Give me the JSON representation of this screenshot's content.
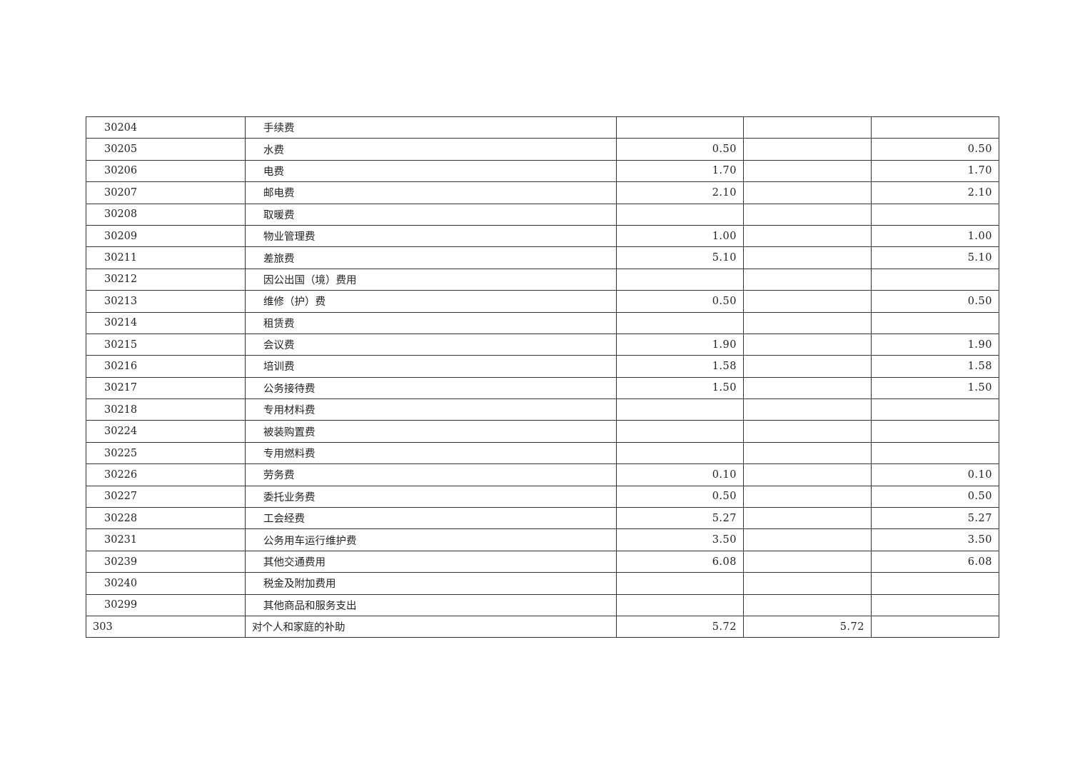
{
  "rows": [
    {
      "code": "30204",
      "name": "手续费",
      "c1": "",
      "c2": "",
      "c3": ""
    },
    {
      "code": "30205",
      "name": "水费",
      "c1": "0.50",
      "c2": "",
      "c3": "0.50"
    },
    {
      "code": "30206",
      "name": "电费",
      "c1": "1.70",
      "c2": "",
      "c3": "1.70"
    },
    {
      "code": "30207",
      "name": "邮电费",
      "c1": "2.10",
      "c2": "",
      "c3": "2.10"
    },
    {
      "code": "30208",
      "name": "取暖费",
      "c1": "",
      "c2": "",
      "c3": ""
    },
    {
      "code": "30209",
      "name": "物业管理费",
      "c1": "1.00",
      "c2": "",
      "c3": "1.00"
    },
    {
      "code": "30211",
      "name": "差旅费",
      "c1": "5.10",
      "c2": "",
      "c3": "5.10"
    },
    {
      "code": "30212",
      "name": "因公出国（境）费用",
      "c1": "",
      "c2": "",
      "c3": ""
    },
    {
      "code": "30213",
      "name": "维修（护）费",
      "c1": "0.50",
      "c2": "",
      "c3": "0.50"
    },
    {
      "code": "30214",
      "name": "租赁费",
      "c1": "",
      "c2": "",
      "c3": ""
    },
    {
      "code": "30215",
      "name": "会议费",
      "c1": "1.90",
      "c2": "",
      "c3": "1.90"
    },
    {
      "code": "30216",
      "name": "培训费",
      "c1": "1.58",
      "c2": "",
      "c3": "1.58"
    },
    {
      "code": "30217",
      "name": "公务接待费",
      "c1": "1.50",
      "c2": "",
      "c3": "1.50"
    },
    {
      "code": "30218",
      "name": "专用材料费",
      "c1": "",
      "c2": "",
      "c3": ""
    },
    {
      "code": "30224",
      "name": "被装购置费",
      "c1": "",
      "c2": "",
      "c3": ""
    },
    {
      "code": "30225",
      "name": "专用燃料费",
      "c1": "",
      "c2": "",
      "c3": ""
    },
    {
      "code": "30226",
      "name": "劳务费",
      "c1": "0.10",
      "c2": "",
      "c3": "0.10"
    },
    {
      "code": "30227",
      "name": "委托业务费",
      "c1": "0.50",
      "c2": "",
      "c3": "0.50"
    },
    {
      "code": "30228",
      "name": "工会经费",
      "c1": "5.27",
      "c2": "",
      "c3": "5.27"
    },
    {
      "code": "30231",
      "name": "公务用车运行维护费",
      "c1": "3.50",
      "c2": "",
      "c3": "3.50"
    },
    {
      "code": "30239",
      "name": "其他交通费用",
      "c1": "6.08",
      "c2": "",
      "c3": "6.08"
    },
    {
      "code": "30240",
      "name": "税金及附加费用",
      "c1": "",
      "c2": "",
      "c3": ""
    },
    {
      "code": "30299",
      "name": "其他商品和服务支出",
      "c1": "",
      "c2": "",
      "c3": ""
    },
    {
      "code": "303",
      "name": "对个人和家庭的补助",
      "c1": "5.72",
      "c2": "5.72",
      "c3": "",
      "top_level": true
    }
  ]
}
